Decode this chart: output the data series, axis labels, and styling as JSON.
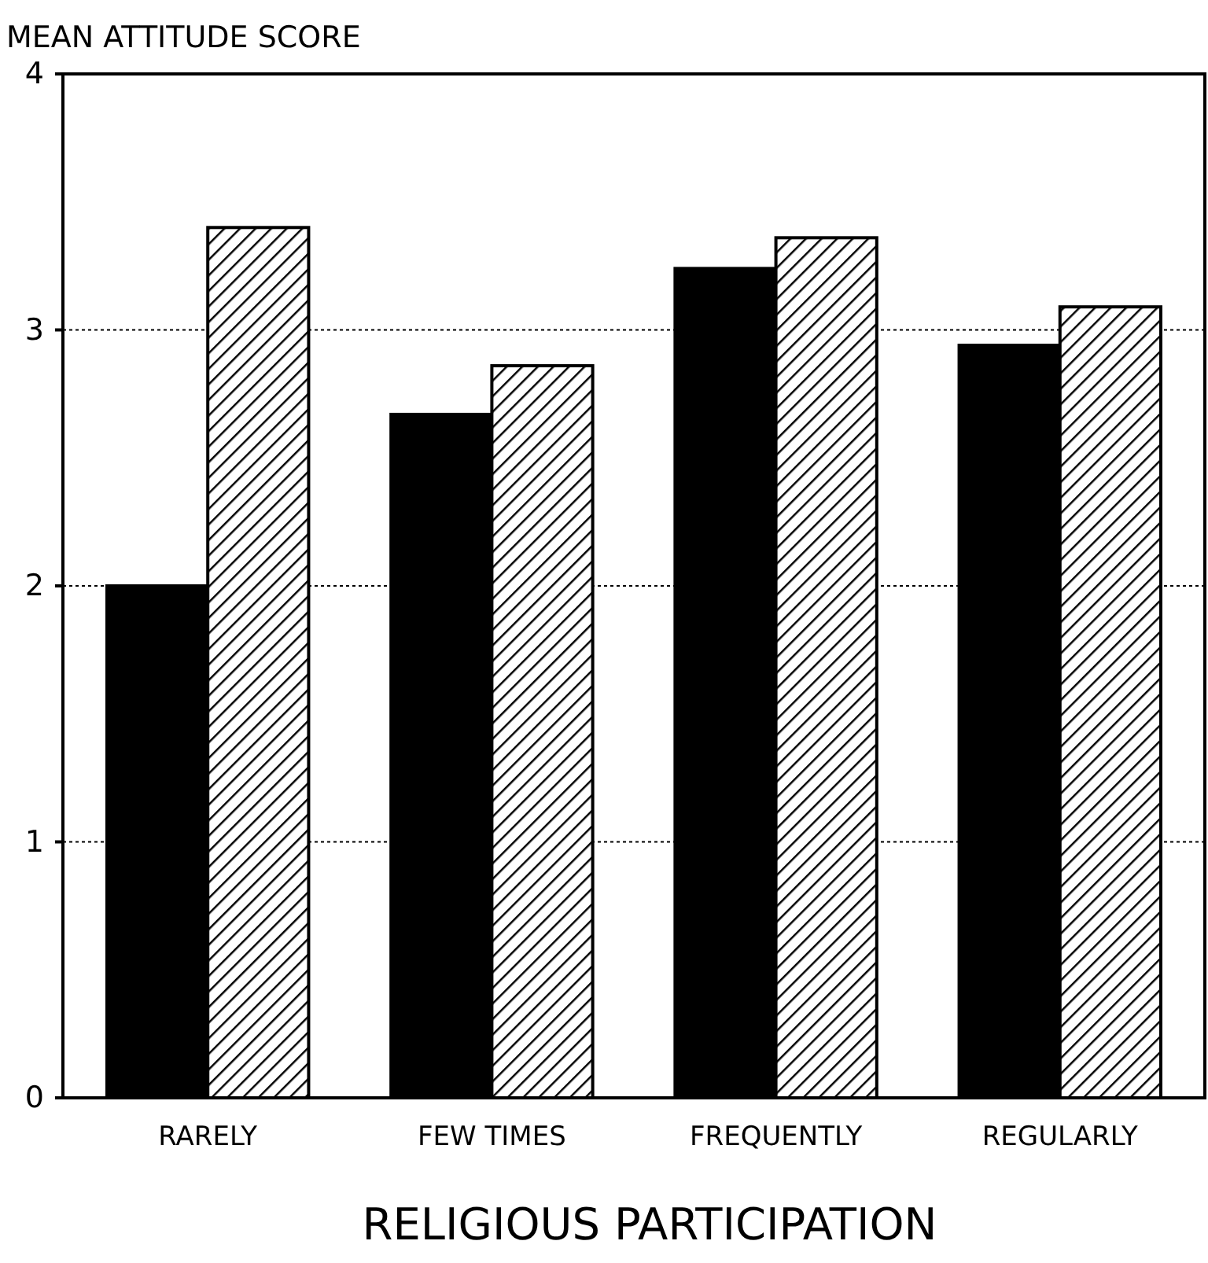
{
  "chart_data": {
    "type": "bar",
    "xlabel": "RELIGIOUS PARTICIPATION",
    "ylabel": "MEAN ATTITUDE SCORE",
    "categories": [
      "RARELY",
      "FEW TIMES",
      "FREQUENTLY",
      "REGULARLY"
    ],
    "series": [
      {
        "color": "#000000",
        "values": [
          2.0,
          2.67,
          3.24,
          2.94
        ]
      },
      {
        "color": "#000000",
        "values": [
          3.4,
          2.86,
          3.36,
          3.09
        ]
      }
    ],
    "ylim": [
      0,
      4
    ],
    "yticks": [
      0,
      1,
      2,
      3,
      4
    ],
    "grid": "y"
  }
}
